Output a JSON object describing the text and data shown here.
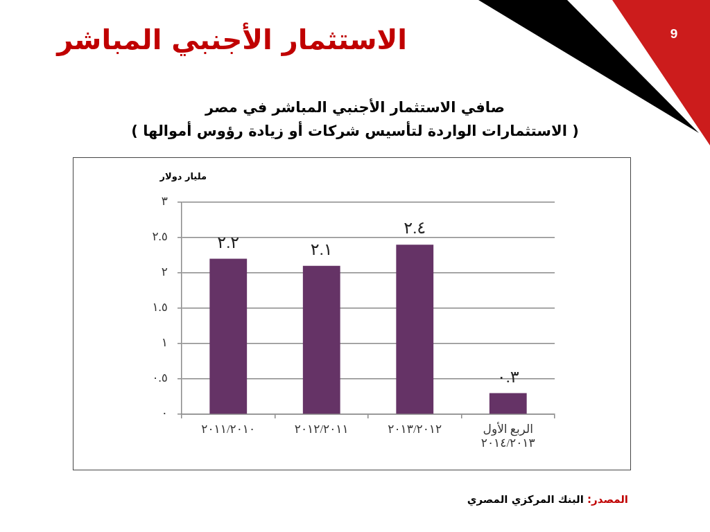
{
  "chart_data": {
    "type": "bar",
    "title": "الاستثمار الأجنبي المباشر",
    "subtitle": "صافي الاستثمار الأجنبي المباشر في مصر\n( الاستثمارات الواردة لتأسيس شركات أو زيادة رؤوس أموالها )",
    "ylabel": "مليار دولار",
    "categories": [
      "٢٠١١/٢٠١٠",
      "٢٠١٢/٢٠١١",
      "٢٠١٣/٢٠١٢",
      "الربع الأول\n٢٠١٤/٢٠١٣"
    ],
    "values": [
      2.2,
      2.1,
      2.4,
      0.3
    ],
    "value_labels": [
      "٢.٢",
      "٢.١",
      "٢.٤",
      "٠.٣"
    ],
    "color": "#653366",
    "ylim": [
      0,
      3
    ],
    "yticks": [
      {
        "value": 0,
        "label": "٠"
      },
      {
        "value": 0.5,
        "label": "٠.٥"
      },
      {
        "value": 1,
        "label": "١"
      },
      {
        "value": 1.5,
        "label": "١.٥"
      },
      {
        "value": 2,
        "label": "٢"
      },
      {
        "value": 2.5,
        "label": "٢.٥"
      },
      {
        "value": 3,
        "label": "٣"
      }
    ],
    "grid": "y",
    "annotations": [
      "المصدر: البنك المركزي المصري",
      "9"
    ]
  }
}
